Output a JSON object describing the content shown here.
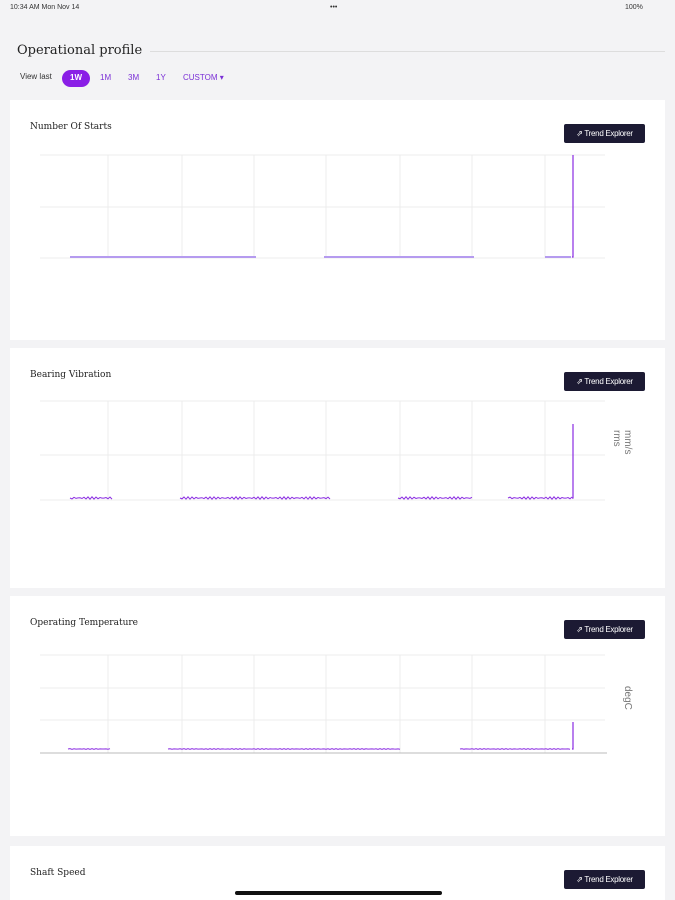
{
  "status_bar": {
    "time": "10:34 AM  Mon Nov 14",
    "dots": "•••",
    "battery": "100%"
  },
  "header": {
    "title": "Operational profile",
    "view_last": "View last",
    "ranges": [
      "1W",
      "1M",
      "3M",
      "1Y",
      "CUSTOM"
    ]
  },
  "cards": [
    {
      "title": "Number Of Starts",
      "button": "Trend Explorer"
    },
    {
      "title": "Bearing Vibration",
      "button": "Trend Explorer",
      "unit": "mm/s rms"
    },
    {
      "title": "Operating Temperature",
      "button": "Trend Explorer",
      "unit": "degC"
    },
    {
      "title": "Shaft Speed",
      "button": "Trend Explorer"
    }
  ]
}
